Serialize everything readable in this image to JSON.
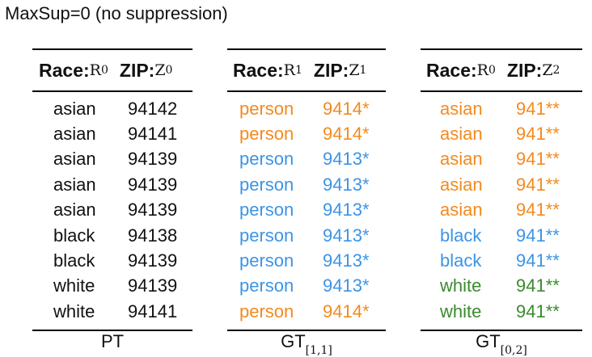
{
  "title": "MaxSup=0 (no suppression)",
  "colors": {
    "orange": "#f38a1f",
    "blue": "#3c94e6",
    "green": "#3b8a2e"
  },
  "tables": [
    {
      "race_header": "Race:",
      "race_sym": "R",
      "race_sub": "0",
      "zip_header": "ZIP:",
      "zip_sym": "Z",
      "zip_sub": "0",
      "footer": "PT",
      "footer_sub": "",
      "rows": [
        {
          "race": "asian",
          "zip": "94142",
          "race_color": "black",
          "zip_color": "black"
        },
        {
          "race": "asian",
          "zip": "94141",
          "race_color": "black",
          "zip_color": "black"
        },
        {
          "race": "asian",
          "zip": "94139",
          "race_color": "black",
          "zip_color": "black"
        },
        {
          "race": "asian",
          "zip": "94139",
          "race_color": "black",
          "zip_color": "black"
        },
        {
          "race": "asian",
          "zip": "94139",
          "race_color": "black",
          "zip_color": "black"
        },
        {
          "race": "black",
          "zip": "94138",
          "race_color": "black",
          "zip_color": "black"
        },
        {
          "race": "black",
          "zip": "94139",
          "race_color": "black",
          "zip_color": "black"
        },
        {
          "race": "white",
          "zip": "94139",
          "race_color": "black",
          "zip_color": "black"
        },
        {
          "race": "white",
          "zip": "94141",
          "race_color": "black",
          "zip_color": "black"
        }
      ]
    },
    {
      "race_header": "Race:",
      "race_sym": "R",
      "race_sub": "1",
      "zip_header": "ZIP:",
      "zip_sym": "Z",
      "zip_sub": "1",
      "footer": "GT",
      "footer_sub": "[1,1]",
      "rows": [
        {
          "race": "person",
          "zip": "9414*",
          "race_color": "orange",
          "zip_color": "orange"
        },
        {
          "race": "person",
          "zip": "9414*",
          "race_color": "orange",
          "zip_color": "orange"
        },
        {
          "race": "person",
          "zip": "9413*",
          "race_color": "blue",
          "zip_color": "blue"
        },
        {
          "race": "person",
          "zip": "9413*",
          "race_color": "blue",
          "zip_color": "blue"
        },
        {
          "race": "person",
          "zip": "9413*",
          "race_color": "blue",
          "zip_color": "blue"
        },
        {
          "race": "person",
          "zip": "9413*",
          "race_color": "blue",
          "zip_color": "blue"
        },
        {
          "race": "person",
          "zip": "9413*",
          "race_color": "blue",
          "zip_color": "blue"
        },
        {
          "race": "person",
          "zip": "9413*",
          "race_color": "blue",
          "zip_color": "blue"
        },
        {
          "race": "person",
          "zip": "9414*",
          "race_color": "orange",
          "zip_color": "orange"
        }
      ]
    },
    {
      "race_header": "Race:",
      "race_sym": "R",
      "race_sub": "0",
      "zip_header": "ZIP:",
      "zip_sym": "Z",
      "zip_sub": "2",
      "footer": "GT",
      "footer_sub": "[0,2]",
      "rows": [
        {
          "race": "asian",
          "zip": "941**",
          "race_color": "orange",
          "zip_color": "orange"
        },
        {
          "race": "asian",
          "zip": "941**",
          "race_color": "orange",
          "zip_color": "orange"
        },
        {
          "race": "asian",
          "zip": "941**",
          "race_color": "orange",
          "zip_color": "orange"
        },
        {
          "race": "asian",
          "zip": "941**",
          "race_color": "orange",
          "zip_color": "orange"
        },
        {
          "race": "asian",
          "zip": "941**",
          "race_color": "orange",
          "zip_color": "orange"
        },
        {
          "race": "black",
          "zip": "941**",
          "race_color": "blue",
          "zip_color": "blue"
        },
        {
          "race": "black",
          "zip": "941**",
          "race_color": "blue",
          "zip_color": "blue"
        },
        {
          "race": "white",
          "zip": "941**",
          "race_color": "green",
          "zip_color": "green"
        },
        {
          "race": "white",
          "zip": "941**",
          "race_color": "green",
          "zip_color": "green"
        }
      ]
    }
  ]
}
